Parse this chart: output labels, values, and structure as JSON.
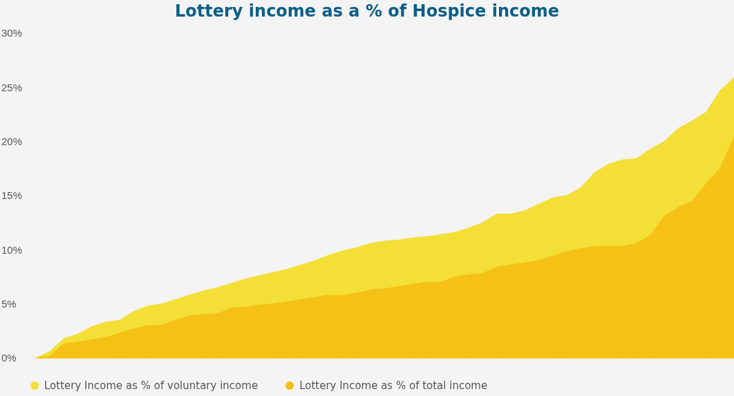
{
  "chart_data": {
    "type": "area",
    "title": "Lottery income as a % of Hospice income",
    "ylim": [
      0,
      30
    ],
    "categories": [
      null,
      null,
      null,
      null,
      null,
      null,
      null,
      null,
      null,
      null,
      null,
      null,
      null,
      null,
      null,
      null,
      null,
      null,
      null,
      null,
      null,
      null,
      null,
      null,
      null,
      null,
      null,
      null,
      null,
      null,
      null,
      null,
      null,
      null,
      null,
      null,
      null,
      null,
      null,
      null,
      null,
      null,
      null,
      null,
      null,
      null,
      null,
      null,
      null,
      null,
      null
    ],
    "yticks": [
      {
        "value": 0,
        "label": "0%"
      },
      {
        "value": 5,
        "label": "5%"
      },
      {
        "value": 10,
        "label": "10%"
      },
      {
        "value": 15,
        "label": "15%"
      },
      {
        "value": 20,
        "label": "20%"
      },
      {
        "value": 25,
        "label": "25%"
      },
      {
        "value": 30,
        "label": "30%"
      }
    ],
    "tick_labels": "y",
    "legend": "bottom",
    "series": [
      {
        "name": "Lottery Income as % of voluntary income",
        "color": "#f4df36",
        "values": [
          0,
          0.6,
          1.8,
          2.2,
          2.9,
          3.3,
          3.5,
          4.3,
          4.8,
          5.0,
          5.4,
          5.8,
          6.2,
          6.5,
          6.9,
          7.3,
          7.6,
          7.9,
          8.2,
          8.6,
          9.0,
          9.5,
          9.9,
          10.2,
          10.6,
          10.8,
          10.9,
          11.1,
          11.2,
          11.4,
          11.6,
          12.0,
          12.5,
          13.3,
          13.3,
          13.6,
          14.2,
          14.8,
          15.0,
          15.7,
          17.1,
          17.9,
          18.3,
          18.4,
          19.3,
          20.0,
          21.2,
          21.9,
          22.7,
          24.7,
          25.9
        ]
      },
      {
        "name": "Lottery Income as % of total income",
        "color": "#f5c116",
        "values": [
          0,
          0.2,
          1.3,
          1.5,
          1.7,
          1.9,
          2.3,
          2.7,
          3.0,
          3.0,
          3.5,
          3.9,
          4.0,
          4.1,
          4.6,
          4.7,
          4.9,
          5.0,
          5.2,
          5.4,
          5.6,
          5.8,
          5.8,
          6.0,
          6.3,
          6.4,
          6.6,
          6.8,
          7.0,
          7.0,
          7.5,
          7.7,
          7.8,
          8.4,
          8.6,
          8.8,
          9.0,
          9.4,
          9.8,
          10.1,
          10.3,
          10.3,
          10.3,
          10.6,
          11.3,
          13.1,
          13.9,
          14.5,
          16.1,
          17.5,
          20.4
        ]
      }
    ]
  }
}
